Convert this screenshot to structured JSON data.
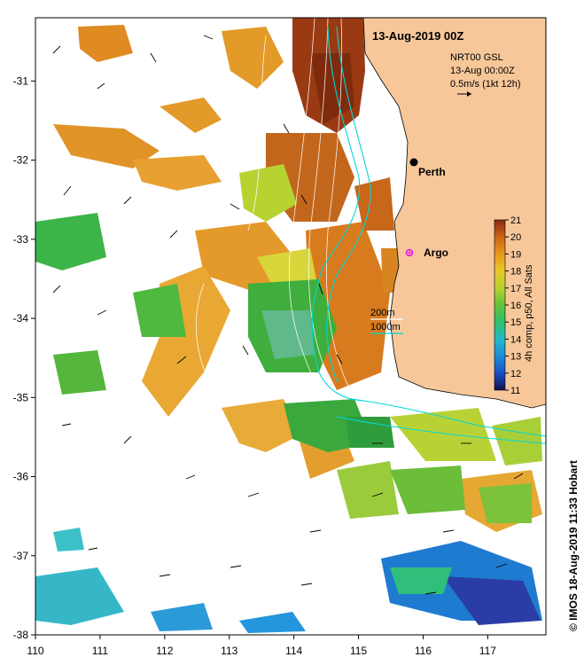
{
  "map": {
    "title": "13-Aug-2019 00Z",
    "lon_ticks": [
      "110",
      "111",
      "112",
      "113",
      "114",
      "115",
      "116",
      "117"
    ],
    "lat_ticks": [
      "-31",
      "-32",
      "-33",
      "-34",
      "-35",
      "-36",
      "-37",
      "-38"
    ],
    "extent": {
      "lon_min": 110,
      "lon_max": 117.9,
      "lat_min": -38,
      "lat_max": -30.2
    },
    "land_color": "#f7c79a",
    "current_color": "#00d8d8",
    "current_label": "NRT00 GSL",
    "current_time": "13-Aug 00:00Z",
    "current_scale": "0.5m/s (1kt 12h)",
    "contour_200": "200m",
    "contour_1000": "1000m",
    "places": [
      {
        "name": "Perth",
        "lon": 115.85,
        "lat": -31.95,
        "marker": "black-dot"
      },
      {
        "name": "Argo",
        "lon": 115.65,
        "lat": -33.1,
        "marker": "magenta-star"
      }
    ],
    "colorbar": {
      "label": "4h comp, p50, All Sats",
      "ticks": [
        "21",
        "20",
        "19",
        "18",
        "17",
        "16",
        "15",
        "14",
        "13",
        "12",
        "11"
      ],
      "min": 11,
      "max": 21
    },
    "credit": "© IMOS 18-Aug-2019 11:33 Hobart"
  }
}
